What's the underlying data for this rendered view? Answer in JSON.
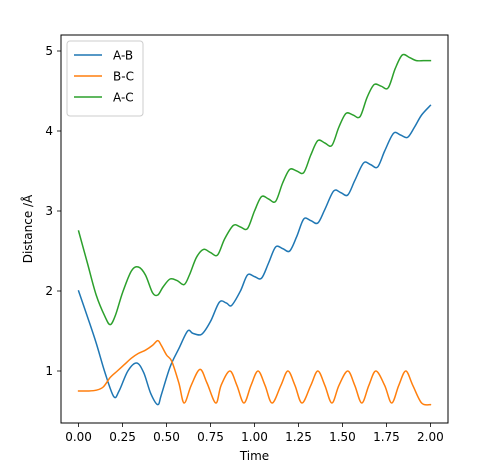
{
  "chart_data": {
    "type": "line",
    "title": "",
    "xlabel": "Time",
    "ylabel": "Distance /Å",
    "xlim": [
      -0.1,
      2.1
    ],
    "ylim": [
      0.35,
      5.2
    ],
    "xticks": [
      0.0,
      0.25,
      0.5,
      0.75,
      1.0,
      1.25,
      1.5,
      1.75,
      2.0
    ],
    "xtick_labels": [
      "0.00",
      "0.25",
      "0.50",
      "0.75",
      "1.00",
      "1.25",
      "1.50",
      "1.75",
      "2.00"
    ],
    "yticks": [
      1,
      2,
      3,
      4,
      5
    ],
    "ytick_labels": [
      "1",
      "2",
      "3",
      "4",
      "5"
    ],
    "grid": false,
    "legend_position": "top-left",
    "series": [
      {
        "name": "A-B",
        "color": "#1f77b4",
        "x": [
          0.0,
          0.05,
          0.1,
          0.15,
          0.2,
          0.23,
          0.28,
          0.33,
          0.37,
          0.41,
          0.45,
          0.47,
          0.52,
          0.57,
          0.62,
          0.65,
          0.7,
          0.75,
          0.8,
          0.84,
          0.87,
          0.92,
          0.96,
          1.0,
          1.04,
          1.08,
          1.12,
          1.16,
          1.2,
          1.24,
          1.28,
          1.32,
          1.36,
          1.4,
          1.45,
          1.49,
          1.53,
          1.57,
          1.62,
          1.66,
          1.7,
          1.74,
          1.79,
          1.83,
          1.87,
          1.91,
          1.95,
          2.0
        ],
        "y": [
          2.0,
          1.68,
          1.35,
          0.98,
          0.68,
          0.75,
          1.0,
          1.1,
          0.98,
          0.72,
          0.58,
          0.7,
          1.05,
          1.28,
          1.5,
          1.47,
          1.46,
          1.62,
          1.86,
          1.85,
          1.82,
          2.0,
          2.2,
          2.18,
          2.16,
          2.35,
          2.55,
          2.53,
          2.5,
          2.68,
          2.9,
          2.88,
          2.85,
          3.02,
          3.25,
          3.23,
          3.2,
          3.38,
          3.6,
          3.58,
          3.55,
          3.75,
          3.97,
          3.95,
          3.92,
          4.05,
          4.2,
          4.32
        ]
      },
      {
        "name": "B-C",
        "color": "#ff7f0e",
        "x": [
          0.0,
          0.05,
          0.1,
          0.14,
          0.18,
          0.22,
          0.26,
          0.3,
          0.34,
          0.38,
          0.42,
          0.45,
          0.47,
          0.5,
          0.53,
          0.57,
          0.6,
          0.64,
          0.69,
          0.73,
          0.78,
          0.81,
          0.86,
          0.9,
          0.94,
          0.98,
          1.02,
          1.06,
          1.1,
          1.15,
          1.19,
          1.23,
          1.27,
          1.32,
          1.36,
          1.4,
          1.44,
          1.48,
          1.53,
          1.57,
          1.61,
          1.65,
          1.69,
          1.74,
          1.78,
          1.82,
          1.86,
          1.9,
          1.95,
          2.0
        ],
        "y": [
          0.75,
          0.75,
          0.76,
          0.8,
          0.92,
          1.0,
          1.08,
          1.16,
          1.22,
          1.26,
          1.32,
          1.38,
          1.32,
          1.2,
          1.12,
          0.85,
          0.6,
          0.82,
          1.02,
          0.85,
          0.6,
          0.82,
          1.0,
          0.82,
          0.6,
          0.82,
          1.0,
          0.82,
          0.6,
          0.82,
          1.0,
          0.82,
          0.6,
          0.82,
          1.0,
          0.82,
          0.6,
          0.82,
          1.0,
          0.82,
          0.6,
          0.82,
          1.0,
          0.82,
          0.6,
          0.82,
          1.0,
          0.82,
          0.6,
          0.58
        ]
      },
      {
        "name": "A-C",
        "color": "#2ca02c",
        "x": [
          0.0,
          0.05,
          0.1,
          0.15,
          0.18,
          0.21,
          0.25,
          0.3,
          0.34,
          0.38,
          0.42,
          0.45,
          0.48,
          0.52,
          0.56,
          0.6,
          0.63,
          0.67,
          0.71,
          0.75,
          0.79,
          0.83,
          0.88,
          0.92,
          0.96,
          1.0,
          1.04,
          1.08,
          1.12,
          1.16,
          1.2,
          1.24,
          1.28,
          1.32,
          1.36,
          1.4,
          1.44,
          1.48,
          1.52,
          1.56,
          1.6,
          1.64,
          1.68,
          1.72,
          1.76,
          1.8,
          1.84,
          1.88,
          1.92,
          1.96,
          2.0
        ],
        "y": [
          2.75,
          2.35,
          1.95,
          1.68,
          1.58,
          1.7,
          1.98,
          2.25,
          2.3,
          2.2,
          1.98,
          1.95,
          2.05,
          2.15,
          2.13,
          2.08,
          2.2,
          2.42,
          2.52,
          2.48,
          2.45,
          2.65,
          2.82,
          2.8,
          2.78,
          3.0,
          3.18,
          3.15,
          3.12,
          3.35,
          3.52,
          3.5,
          3.48,
          3.7,
          3.88,
          3.85,
          3.82,
          4.05,
          4.22,
          4.2,
          4.18,
          4.42,
          4.58,
          4.56,
          4.54,
          4.78,
          4.95,
          4.92,
          4.88,
          4.88,
          4.88
        ]
      }
    ]
  }
}
